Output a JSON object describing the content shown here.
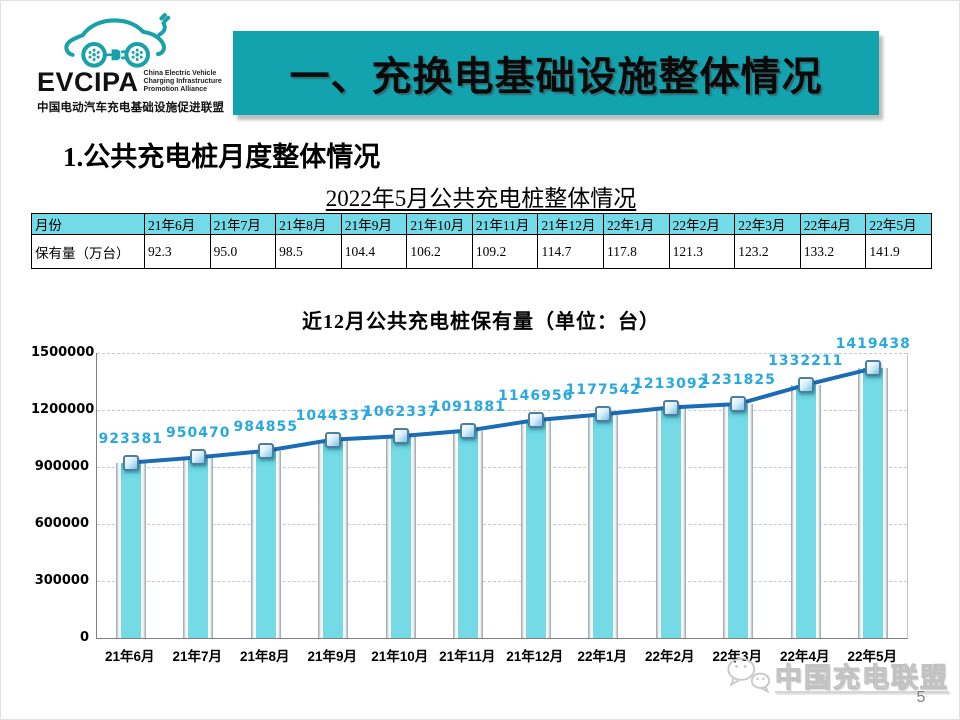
{
  "colors": {
    "accent_teal": "#12a3af",
    "header_cell_bg": "#73dbe7",
    "bar_fill": "#74dae6",
    "bar_top_shade": "#45bfd2",
    "line_blue": "#1a6cb4",
    "value_label_blue": "#29a8e0",
    "logo_teal": "#18a1a9"
  },
  "logo": {
    "acronym": "EVCIPA",
    "tagline": [
      "China Electric Vehicle",
      "Charging Infrastructure",
      "Promotion Alliance"
    ],
    "chinese_name": "中国电动汽车充电基础设施促进联盟"
  },
  "header": {
    "title": "一、充换电基础设施整体情况"
  },
  "section": {
    "subtitle": "1.公共充电桩月度整体情况"
  },
  "table": {
    "title": "2022年5月公共充电桩整体情况",
    "corner_header": "月份",
    "row_label": "保有量（万台）",
    "columns": [
      "21年6月",
      "21年7月",
      "21年8月",
      "21年9月",
      "21年10月",
      "21年11月",
      "21年12月",
      "22年1月",
      "22年2月",
      "22年3月",
      "22年4月",
      "22年5月"
    ],
    "values": [
      "92.3",
      "95.0",
      "98.5",
      "104.4",
      "106.2",
      "109.2",
      "114.7",
      "117.8",
      "121.3",
      "123.2",
      "133.2",
      "141.9"
    ]
  },
  "chart_data": {
    "type": "bar",
    "title": "近12月公共充电桩保有量（单位：台）",
    "categories": [
      "21年6月",
      "21年7月",
      "21年8月",
      "21年9月",
      "21年10月",
      "21年11月",
      "21年12月",
      "22年1月",
      "22年2月",
      "22年3月",
      "22年4月",
      "22年5月"
    ],
    "values": [
      923381,
      950470,
      984855,
      1044337,
      1062337,
      1091881,
      1146956,
      1177542,
      1213092,
      1231825,
      1332211,
      1419438
    ],
    "line_overlay_values": [
      923381,
      950470,
      984855,
      1044337,
      1062337,
      1091881,
      1146956,
      1177542,
      1213092,
      1231825,
      1332211,
      1419438
    ],
    "xlabel": "",
    "ylabel": "",
    "ylim": [
      0,
      1500000
    ],
    "yticks": [
      0,
      300000,
      600000,
      900000,
      1200000,
      1500000
    ],
    "grid": true,
    "legend": "none"
  },
  "footer": {
    "alliance_name": "中国充电联盟",
    "page_number": "5"
  }
}
